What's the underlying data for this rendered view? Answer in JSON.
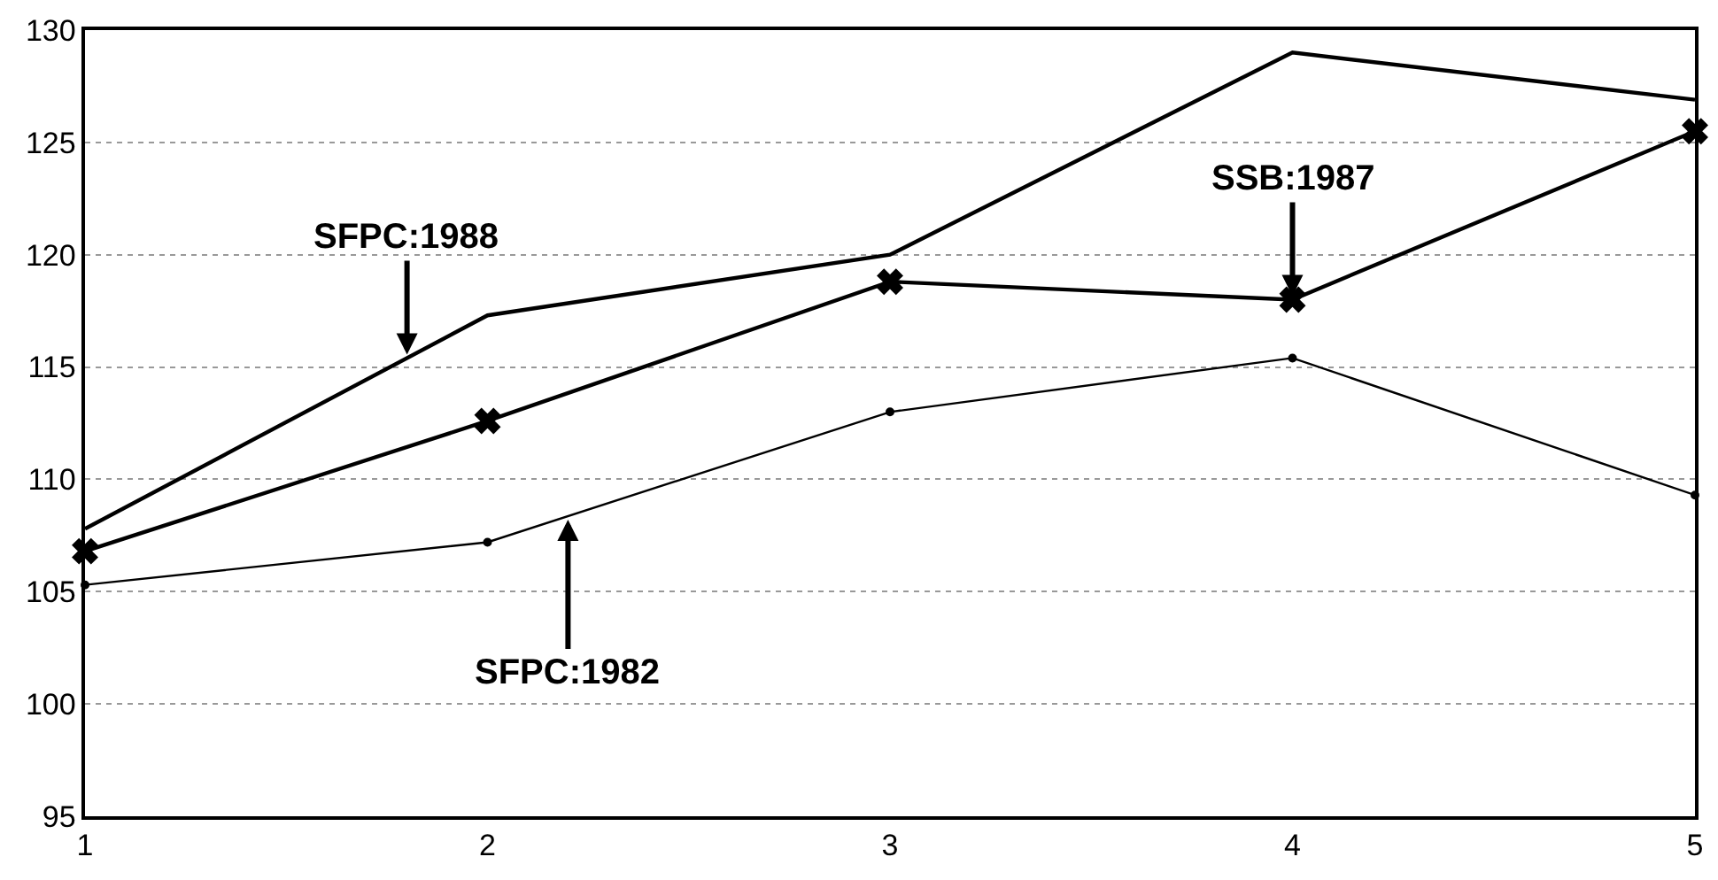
{
  "chart_data": {
    "type": "line",
    "x": [
      1,
      2,
      3,
      4,
      5
    ],
    "series": [
      {
        "color": "#000000",
        "marker": "none",
        "values": [
          107.8,
          117.3,
          120.0,
          129.0,
          126.9
        ]
      },
      {
        "color": "#000000",
        "marker": "cross",
        "values": [
          106.8,
          112.6,
          118.8,
          118.0,
          125.5
        ]
      },
      {
        "color": "#000000",
        "marker": "circle",
        "values": [
          105.3,
          107.2,
          113.0,
          115.4,
          109.3
        ]
      }
    ],
    "xlim": [
      1,
      5
    ],
    "xticks": [
      1,
      2,
      3,
      4,
      5
    ],
    "ylim": [
      95,
      130
    ],
    "yticks": [
      95,
      100,
      105,
      110,
      115,
      120,
      125,
      130
    ],
    "grid": "y",
    "line_style": "solid",
    "annotations": [
      {
        "text": "SFPC:1988",
        "x": 1.8,
        "y": 115.4
      },
      {
        "text": "SSB:1987",
        "x": 4,
        "y": 118.0
      },
      {
        "text": "SFPC:1982",
        "x": 2.2,
        "y": 108.36
      }
    ]
  }
}
